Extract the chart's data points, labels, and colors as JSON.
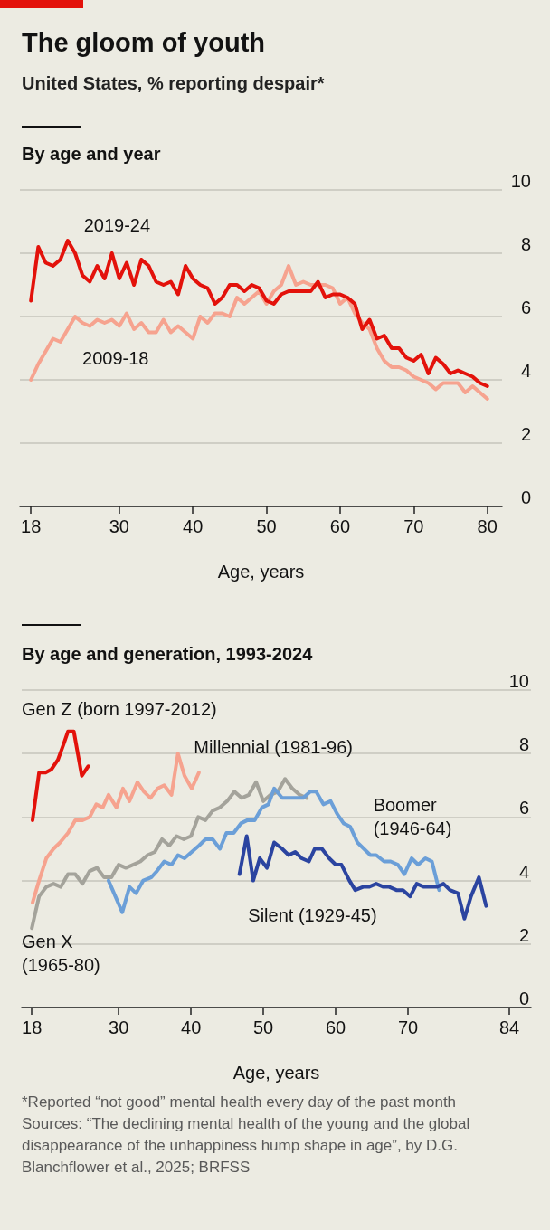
{
  "chart_data": [
    {
      "type": "line",
      "title": "The gloom of youth",
      "subtitle": "United States, % reporting despair*",
      "annotations": [
        "By age and year"
      ],
      "xlabel": "Age, years",
      "xlim": [
        16.5,
        82
      ],
      "xticks": [
        18,
        30,
        40,
        50,
        60,
        70,
        80
      ],
      "ylim": [
        0,
        10
      ],
      "yticks": [
        0,
        2,
        4,
        6,
        8,
        10
      ],
      "grid": "y",
      "x": [
        18,
        19,
        20,
        21,
        22,
        23,
        24,
        25,
        26,
        27,
        28,
        29,
        30,
        31,
        32,
        33,
        34,
        35,
        36,
        37,
        38,
        39,
        40,
        41,
        42,
        43,
        44,
        45,
        46,
        47,
        48,
        49,
        50,
        51,
        52,
        53,
        54,
        55,
        56,
        57,
        58,
        59,
        60,
        61,
        62,
        63,
        64,
        65,
        66,
        67,
        68,
        69,
        70,
        71,
        72,
        73,
        74,
        75,
        76,
        77,
        78,
        79,
        80
      ],
      "series": [
        {
          "name": "2009-18",
          "color": "#f6a38f",
          "values": [
            4.0,
            4.5,
            4.9,
            5.3,
            5.2,
            5.6,
            6.0,
            5.8,
            5.7,
            5.9,
            5.8,
            5.9,
            5.7,
            6.1,
            5.6,
            5.8,
            5.5,
            5.5,
            5.9,
            5.5,
            5.7,
            5.5,
            5.3,
            6.0,
            5.8,
            6.1,
            6.1,
            6.0,
            6.6,
            6.4,
            6.6,
            6.8,
            6.4,
            6.8,
            7.0,
            7.6,
            7.0,
            7.1,
            7.0,
            7.0,
            7.0,
            6.9,
            6.4,
            6.6,
            6.1,
            5.8,
            5.6,
            5.0,
            4.6,
            4.4,
            4.4,
            4.3,
            4.1,
            4.0,
            3.9,
            3.7,
            3.9,
            3.9,
            3.9,
            3.6,
            3.8,
            3.6,
            3.4
          ]
        },
        {
          "name": "2019-24",
          "color": "#e3120b",
          "values": [
            6.5,
            8.2,
            7.7,
            7.6,
            7.8,
            8.4,
            8.0,
            7.3,
            7.1,
            7.6,
            7.2,
            8.0,
            7.2,
            7.7,
            7.0,
            7.8,
            7.6,
            7.1,
            7.0,
            7.1,
            6.7,
            7.6,
            7.2,
            7.0,
            6.9,
            6.4,
            6.6,
            7.0,
            7.0,
            6.8,
            7.0,
            6.9,
            6.5,
            6.4,
            6.7,
            6.8,
            6.8,
            6.8,
            6.8,
            7.1,
            6.6,
            6.7,
            6.7,
            6.6,
            6.4,
            5.6,
            5.9,
            5.3,
            5.4,
            5.0,
            5.0,
            4.7,
            4.6,
            4.8,
            4.2,
            4.7,
            4.5,
            4.2,
            4.3,
            4.2,
            4.1,
            3.9,
            3.8
          ]
        }
      ]
    },
    {
      "type": "line",
      "title": "By age and generation, 1993-2024",
      "xlabel": "Age, years",
      "xlim": [
        16.6,
        87
      ],
      "xticks": [
        18,
        30,
        40,
        50,
        60,
        70,
        84
      ],
      "ylim": [
        0,
        10
      ],
      "yticks": [
        0,
        2,
        4,
        6,
        8,
        10
      ],
      "grid": "y",
      "annotations": [
        "*Reported “not good” mental health every day of the past month",
        "Sources: “The declining mental health of the young and the global disappearance of the unhappiness hump shape in age”, by D.G. Blanchflower et al., 2025; BRFSS"
      ],
      "series": [
        {
          "name": "Gen X (1965-80)",
          "color": "#a4a39b",
          "x": [
            18,
            19,
            20,
            21,
            22,
            23,
            24,
            25,
            26,
            27,
            28,
            29,
            30,
            31,
            32,
            33,
            34,
            35,
            36,
            37,
            38,
            39,
            40,
            41,
            42,
            43,
            44,
            45,
            46,
            47,
            48,
            49,
            50,
            51,
            52,
            53,
            54,
            55,
            56
          ],
          "values": [
            2.5,
            3.5,
            3.8,
            3.9,
            3.8,
            4.2,
            4.2,
            3.9,
            4.3,
            4.4,
            4.1,
            4.1,
            4.5,
            4.4,
            4.5,
            4.6,
            4.8,
            4.9,
            5.3,
            5.1,
            5.4,
            5.3,
            5.4,
            6.0,
            5.9,
            6.2,
            6.3,
            6.5,
            6.8,
            6.6,
            6.7,
            7.1,
            6.5,
            6.7,
            6.8,
            7.2,
            6.9,
            6.7,
            6.6
          ]
        },
        {
          "name": "Boomer (1946-64)",
          "color": "#6b9fd8",
          "x": [
            28.6,
            30.5,
            31.5,
            32.4,
            33.4,
            34.5,
            35.3,
            36.3,
            37.3,
            38.2,
            39.1,
            40.1,
            41.1,
            42,
            43,
            44,
            44.9,
            45.9,
            46.9,
            47.8,
            48.8,
            49.8,
            50.7,
            51.5,
            52.6,
            53.5,
            54.4,
            55.5,
            56.5,
            57.3,
            58.3,
            59.3,
            60.2,
            61.1,
            62,
            63,
            63.9,
            64.8,
            65.6,
            66.7,
            67.6,
            68.6,
            69.5,
            70.5,
            71.4,
            72.4,
            73.3,
            74.3
          ],
          "values": [
            4.0,
            3.0,
            3.8,
            3.6,
            4.0,
            4.1,
            4.3,
            4.6,
            4.5,
            4.8,
            4.7,
            4.9,
            5.1,
            5.3,
            5.3,
            5.0,
            5.5,
            5.5,
            5.8,
            5.9,
            5.9,
            6.3,
            6.4,
            6.9,
            6.6,
            6.6,
            6.6,
            6.6,
            6.8,
            6.8,
            6.4,
            6.5,
            6.1,
            5.8,
            5.7,
            5.2,
            5.0,
            4.8,
            4.8,
            4.6,
            4.6,
            4.5,
            4.2,
            4.7,
            4.5,
            4.7,
            4.6,
            3.7
          ]
        },
        {
          "name": "Silent (1929-45)",
          "color": "#2b44a0",
          "x": [
            46.7,
            47.7,
            48.6,
            49.5,
            50.5,
            51.5,
            52.6,
            53.5,
            54.4,
            55.3,
            56.3,
            57.1,
            58.1,
            59.1,
            60,
            60.8,
            61.9,
            62.7,
            63.8,
            64.6,
            65.6,
            66.6,
            67.4,
            68.4,
            69.3,
            70.3,
            71.2,
            72.2,
            73.2,
            74,
            74.9,
            75.8,
            76.9,
            77.8,
            78.7,
            79.8,
            80.8
          ],
          "values": [
            4.2,
            5.4,
            4.0,
            4.7,
            4.4,
            5.2,
            5.0,
            4.8,
            4.9,
            4.7,
            4.6,
            5.0,
            5.0,
            4.7,
            4.5,
            4.5,
            4.0,
            3.7,
            3.8,
            3.8,
            3.9,
            3.8,
            3.8,
            3.7,
            3.7,
            3.5,
            3.9,
            3.8,
            3.8,
            3.8,
            3.9,
            3.7,
            3.6,
            2.8,
            3.5,
            4.1,
            3.2
          ]
        },
        {
          "name": "Millennial (1981-96)",
          "color": "#f6a38f",
          "x": [
            18.1,
            19,
            20,
            21,
            21.9,
            23,
            24,
            25,
            26,
            26.9,
            27.8,
            28.6,
            29.7,
            30.6,
            31.5,
            32.6,
            33.5,
            34.4,
            35.4,
            36.3,
            37.3,
            38.2,
            39.1,
            40.1,
            41.1
          ],
          "values": [
            3.3,
            4.0,
            4.7,
            5.0,
            5.2,
            5.5,
            5.9,
            5.9,
            6.0,
            6.4,
            6.3,
            6.7,
            6.3,
            6.9,
            6.5,
            7.1,
            6.8,
            6.6,
            6.9,
            7.0,
            6.7,
            8.0,
            7.3,
            6.9,
            7.4
          ]
        },
        {
          "name": "Gen Z (born 1997-2012)",
          "color": "#e3120b",
          "x": [
            18.1,
            19,
            19.9,
            20.7,
            21.6,
            22.4,
            23,
            23.8,
            24.9,
            25.8
          ],
          "values": [
            5.9,
            7.4,
            7.4,
            7.5,
            7.8,
            8.3,
            8.7,
            8.7,
            7.3,
            7.6
          ]
        }
      ]
    }
  ]
}
